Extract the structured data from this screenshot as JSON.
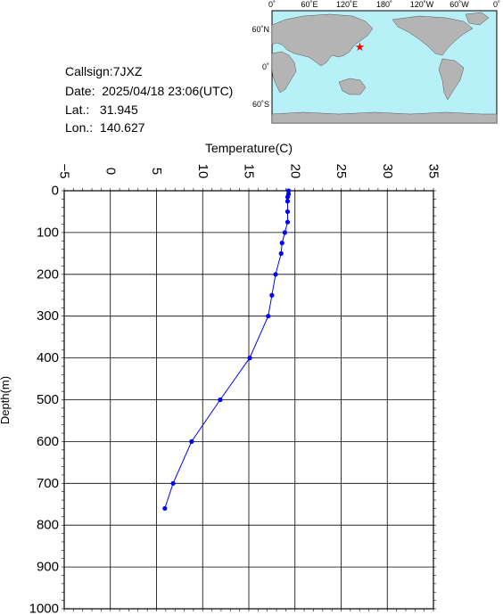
{
  "station": {
    "callsign_label": "Callsign:",
    "callsign": "7JXZ",
    "date_label": "Date:",
    "date": "2025/04/18 23:06(UTC)",
    "lat_label": "Lat.:",
    "lat": "31.945",
    "lon_label": "Lon.:",
    "lon": "140.627"
  },
  "map": {
    "top_labels": [
      "0˚",
      "60˚E",
      "120˚E",
      "180˚",
      "120˚W",
      "60˚W",
      "0˚"
    ],
    "left_labels": [
      "60˚N",
      "0˚",
      "60˚S"
    ],
    "ocean_color": "#b8f0f8",
    "land_color": "#b4b4b4",
    "marker_color": "#ff0000",
    "marker_lat": 31.945,
    "marker_lon": 140.627
  },
  "chart_data": {
    "type": "line",
    "xlabel": "Temperature(C)",
    "ylabel": "Depth(m)",
    "xlim": [
      -5,
      35
    ],
    "ylim": [
      0,
      1000
    ],
    "y_inverted": true,
    "x_ticks": [
      "-5",
      "0",
      "5",
      "10",
      "15",
      "20",
      "25",
      "30",
      "35"
    ],
    "y_ticks": [
      "0",
      "100",
      "200",
      "300",
      "400",
      "500",
      "600",
      "700",
      "800",
      "900",
      "1000"
    ],
    "grid": true,
    "line_color": "#0000ff",
    "series": [
      {
        "points": [
          {
            "t": 19.3,
            "d": 0
          },
          {
            "t": 19.3,
            "d": 8
          },
          {
            "t": 19.2,
            "d": 15
          },
          {
            "t": 19.2,
            "d": 25
          },
          {
            "t": 19.2,
            "d": 50
          },
          {
            "t": 19.2,
            "d": 75
          },
          {
            "t": 18.9,
            "d": 100
          },
          {
            "t": 18.6,
            "d": 125
          },
          {
            "t": 18.5,
            "d": 150
          },
          {
            "t": 17.9,
            "d": 200
          },
          {
            "t": 17.5,
            "d": 250
          },
          {
            "t": 17.1,
            "d": 300
          },
          {
            "t": 15.1,
            "d": 400
          },
          {
            "t": 11.9,
            "d": 500
          },
          {
            "t": 8.8,
            "d": 600
          },
          {
            "t": 6.8,
            "d": 700
          },
          {
            "t": 5.9,
            "d": 760
          }
        ]
      }
    ]
  }
}
